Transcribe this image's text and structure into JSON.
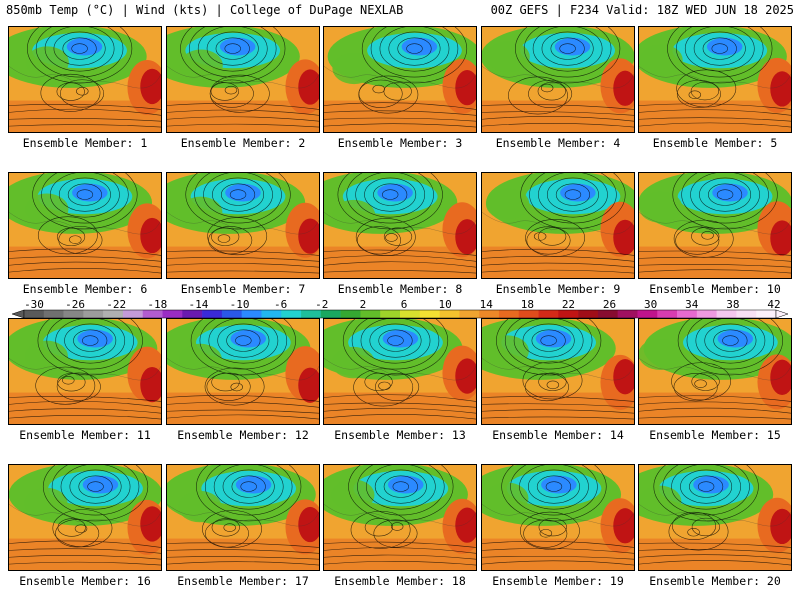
{
  "header": {
    "left": "850mb Temp (°C) | Wind (kts) | College of DuPage NEXLAB",
    "right": "00Z GEFS | F234 Valid: 18Z WED JUN 18 2025"
  },
  "panels": [
    "Ensemble Member: 1",
    "Ensemble Member: 2",
    "Ensemble Member: 3",
    "Ensemble Member: 4",
    "Ensemble Member: 5",
    "Ensemble Member: 6",
    "Ensemble Member: 7",
    "Ensemble Member: 8",
    "Ensemble Member: 9",
    "Ensemble Member: 10",
    "Ensemble Member: 11",
    "Ensemble Member: 12",
    "Ensemble Member: 13",
    "Ensemble Member: 14",
    "Ensemble Member: 15",
    "Ensemble Member: 16",
    "Ensemble Member: 17",
    "Ensemble Member: 18",
    "Ensemble Member: 19",
    "Ensemble Member: 20"
  ],
  "colorbar": {
    "labels": [
      "-30",
      "-26",
      "-22",
      "-18",
      "-14",
      "-10",
      "-6",
      "-2",
      "2",
      "6",
      "10",
      "14",
      "18",
      "22",
      "26",
      "30",
      "34",
      "38",
      "42"
    ],
    "colors": [
      "#5a5a5a",
      "#707070",
      "#868686",
      "#9c9c9c",
      "#b0b0b0",
      "#c49ad8",
      "#b25cd0",
      "#9a2cc4",
      "#6a1ab0",
      "#3a2ad8",
      "#2a58e8",
      "#2b8aff",
      "#22b6f0",
      "#22d2d0",
      "#1fbf9a",
      "#1aa860",
      "#35a832",
      "#62be2a",
      "#9ed42a",
      "#d8e02e",
      "#f4e032",
      "#f4c22e",
      "#f0a430",
      "#ec8828",
      "#e86a20",
      "#e04c1c",
      "#d42a18",
      "#c01414",
      "#a00e18",
      "#880c30",
      "#a01060",
      "#c0148c",
      "#d83cb0",
      "#e66ad0",
      "#ee9ae0",
      "#f4c8ee",
      "#f8e0f4",
      "#fcf0fa"
    ]
  },
  "map_layers": {
    "land_warm": "#f0a430",
    "land_hot": "#e86a20",
    "cool": "#62be2a",
    "cold": "#22d2d0",
    "coldest": "#2b8aff",
    "heat": "#c01414",
    "contour": "#000000"
  }
}
